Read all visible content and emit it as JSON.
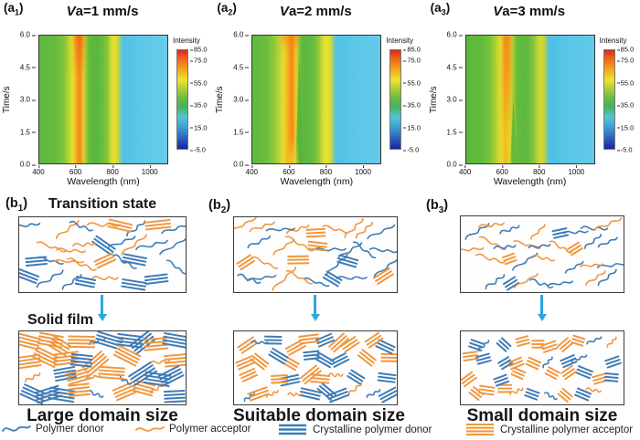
{
  "axes": {
    "xlabel": "Wavelength (nm)",
    "ylabel": "Time/s",
    "x_ticks": [
      "400",
      "600",
      "800",
      "1000"
    ],
    "y_ticks": [
      "6.0",
      "4.5",
      "3.0",
      "1.5",
      "0.0"
    ]
  },
  "colorbar": {
    "title": "Intensity",
    "ticks": [
      "85.0",
      "75.0",
      "55.0",
      "35.0",
      "15.0",
      "-5.0"
    ]
  },
  "panels_a": [
    {
      "tag_prefix": "(a",
      "tag_sub": "1",
      "tag_close": ")",
      "title_italic": "V",
      "title_rest": "a=1 mm/s"
    },
    {
      "tag_prefix": "(a",
      "tag_sub": "2",
      "tag_close": ")",
      "title_italic": "V",
      "title_rest": "a=2 mm/s"
    },
    {
      "tag_prefix": "(a",
      "tag_sub": "3",
      "tag_close": ")",
      "title_italic": "V",
      "title_rest": "a=3  mm/s"
    }
  ],
  "panels_b": [
    {
      "tag_prefix": "(b",
      "tag_sub": "1",
      "tag_close": ")",
      "heading": "Transition state",
      "solid_heading": "Solid film",
      "caption": "Large domain size"
    },
    {
      "tag_prefix": "(b",
      "tag_sub": "2",
      "tag_close": ")",
      "caption": "Suitable domain size"
    },
    {
      "tag_prefix": "(b",
      "tag_sub": "3",
      "tag_close": ")",
      "caption": "Small domain size"
    }
  ],
  "legend": {
    "items": [
      {
        "label": "Polymer donor",
        "icon": "squiggle",
        "color": "#3f7cb6"
      },
      {
        "label": "Polymer acceptor",
        "icon": "squiggle",
        "color": "#f09840"
      },
      {
        "label": "Crystalline polymer donor",
        "icon": "parallel-lines",
        "color": "#3f7cb6"
      },
      {
        "label": "Crystalline polymer acceptor",
        "icon": "parallel-lines",
        "color": "#f09840"
      }
    ]
  },
  "colors": {
    "polymer_donor": "#3f7cb6",
    "polymer_acceptor": "#f09840",
    "arrow": "#2da7dd",
    "heat_red": "#d42a1d",
    "heat_orange": "#f59a1b",
    "heat_yellow": "#e8e431",
    "heat_green": "#5cb83f",
    "heat_cyan": "#52c2e6",
    "heat_blue": "#18259c"
  },
  "chart_data": [
    {
      "type": "heatmap",
      "panel": "a1",
      "title": "Va=1 mm/s",
      "xlabel": "Wavelength (nm)",
      "ylabel": "Time/s",
      "xlim": [
        400,
        1100
      ],
      "ylim": [
        0,
        6
      ],
      "x_ticks": [
        400,
        600,
        800,
        1000
      ],
      "y_ticks": [
        0,
        1.5,
        3,
        4.5,
        6
      ],
      "colorbar_title": "Intensity",
      "colorbar_ticks": [
        85,
        75,
        55,
        35,
        15,
        -5
      ],
      "zlim": [
        -5,
        85
      ],
      "features": "Two emission bands nearly constant over 0-6 s: strong band 560-650 nm peaking ~620 nm (intensity ~80-85, reddest at top), secondary yellow band 780-835 nm (~60), low cyan region ~15 above 850 nm",
      "spectral_profile": {
        "wavelength_nm": [
          400,
          500,
          550,
          590,
          620,
          650,
          700,
          750,
          800,
          835,
          860,
          900,
          1000,
          1100
        ],
        "intensity": [
          45,
          47,
          56,
          68,
          82,
          52,
          46,
          50,
          60,
          55,
          22,
          16,
          15,
          15
        ]
      }
    },
    {
      "type": "heatmap",
      "panel": "a2",
      "title": "Va=2 mm/s",
      "xlabel": "Wavelength (nm)",
      "ylabel": "Time/s",
      "xlim": [
        400,
        1100
      ],
      "ylim": [
        0,
        6
      ],
      "x_ticks": [
        400,
        600,
        800,
        1000
      ],
      "y_ticks": [
        0,
        1.5,
        3,
        4.5,
        6
      ],
      "colorbar_title": "Intensity",
      "colorbar_ticks": [
        85,
        75,
        55,
        35,
        15,
        -5
      ],
      "zlim": [
        -5,
        85
      ],
      "features": "Strong band 560-640 nm peaking ~615 nm (~85) with a narrow green dip near 650 nm for t < 5 s; band pinches toward t = 0; secondary band 780-835 nm (~62); cyan region ~15 above 850 nm",
      "spectral_profile": {
        "wavelength_nm": [
          400,
          500,
          550,
          590,
          620,
          650,
          700,
          750,
          800,
          835,
          860,
          900,
          1000,
          1100
        ],
        "intensity": [
          46,
          50,
          62,
          72,
          85,
          45,
          47,
          52,
          62,
          57,
          22,
          16,
          15,
          15
        ]
      }
    },
    {
      "type": "heatmap",
      "panel": "a3",
      "title": "Va=3 mm/s",
      "xlabel": "Wavelength (nm)",
      "ylabel": "Time/s",
      "xlim": [
        400,
        1100
      ],
      "ylim": [
        0,
        6
      ],
      "x_ticks": [
        400,
        600,
        800,
        1000
      ],
      "y_ticks": [
        0,
        1.5,
        3,
        4.5,
        6
      ],
      "colorbar_title": "Intensity",
      "colorbar_ticks": [
        85,
        75,
        55,
        35,
        15,
        -5
      ],
      "zlim": [
        -5,
        85
      ],
      "features": "Band near 620 nm weaker at early times (~60, yellow) and intensifying toward t = 6 s (~75, orange); green dip near 655 nm for t < 2.5 s; secondary band ~800 nm (~55); cyan region ~14 above 850 nm",
      "spectral_profile": {
        "wavelength_nm": [
          400,
          500,
          550,
          590,
          620,
          650,
          700,
          750,
          800,
          835,
          860,
          900,
          1000,
          1100
        ],
        "intensity": [
          45,
          49,
          58,
          64,
          70,
          50,
          46,
          50,
          56,
          52,
          20,
          15,
          14,
          14
        ]
      }
    }
  ],
  "polymer_boxes": [
    {
      "id": "b1-transition",
      "amorphous_donor": 12,
      "amorphous_acceptor": 9,
      "crystal_donor": 7,
      "crystal_acceptor": 3,
      "crystal_len": 24,
      "crystal_lines": 3,
      "squiggle_len": 30,
      "seed": 11
    },
    {
      "id": "b1-solid",
      "amorphous_donor": 3,
      "amorphous_acceptor": 4,
      "crystal_donor": 13,
      "crystal_acceptor": 16,
      "crystal_len": 25,
      "crystal_lines": 4,
      "squiggle_len": 18,
      "seed": 21
    },
    {
      "id": "b2-transition",
      "amorphous_donor": 13,
      "amorphous_acceptor": 11,
      "crystal_donor": 2,
      "crystal_acceptor": 5,
      "crystal_len": 20,
      "crystal_lines": 3,
      "squiggle_len": 30,
      "seed": 31
    },
    {
      "id": "b2-solid",
      "amorphous_donor": 3,
      "amorphous_acceptor": 4,
      "crystal_donor": 14,
      "crystal_acceptor": 16,
      "crystal_len": 19,
      "crystal_lines": 3,
      "squiggle_len": 16,
      "seed": 41
    },
    {
      "id": "b3-transition",
      "amorphous_donor": 15,
      "amorphous_acceptor": 12,
      "crystal_donor": 2,
      "crystal_acceptor": 2,
      "crystal_len": 15,
      "crystal_lines": 3,
      "squiggle_len": 27,
      "seed": 51
    },
    {
      "id": "b3-solid",
      "amorphous_donor": 5,
      "amorphous_acceptor": 3,
      "crystal_donor": 11,
      "crystal_acceptor": 17,
      "crystal_len": 14,
      "crystal_lines": 3,
      "squiggle_len": 15,
      "seed": 61
    }
  ]
}
